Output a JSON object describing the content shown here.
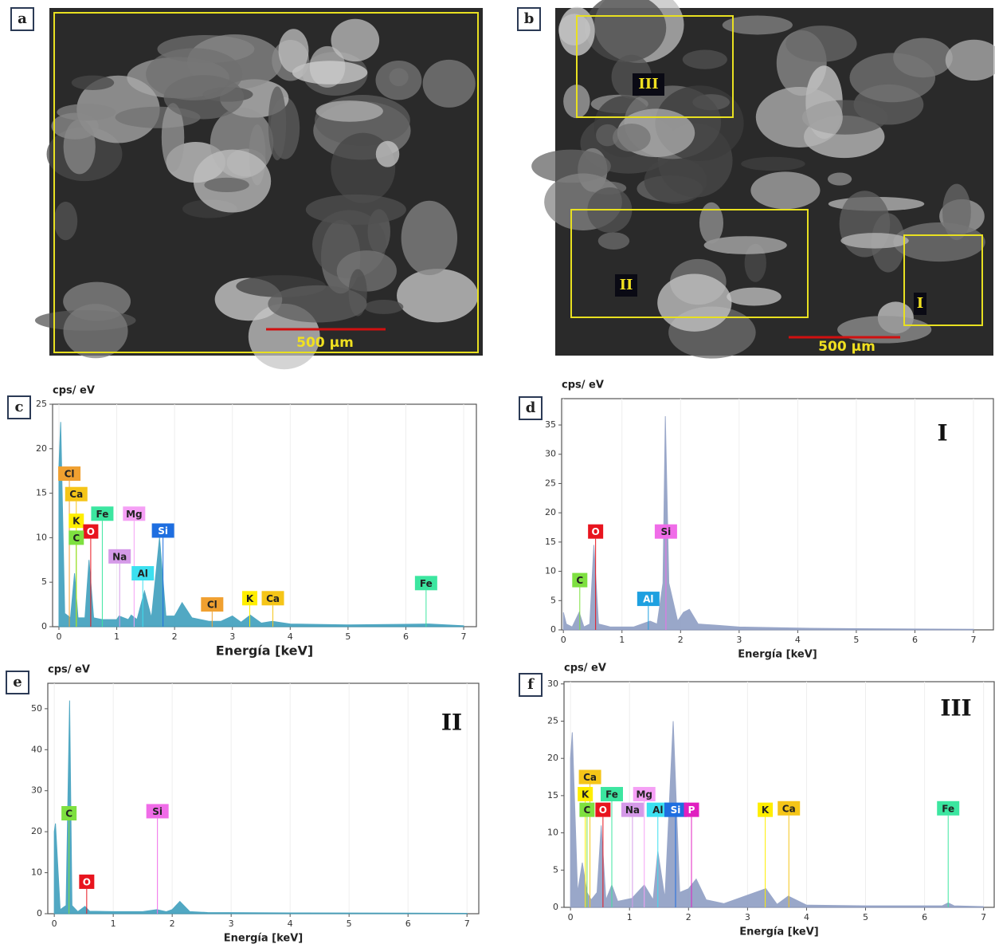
{
  "images": [
    {
      "panel_label": "a",
      "scale_bar": "500 µm"
    },
    {
      "panel_label": "b",
      "scale_bar": "500 µm",
      "regions": [
        "III",
        "II",
        "I"
      ]
    }
  ],
  "chart_data": [
    {
      "type": "area",
      "panel_label": "c",
      "y_label": "cps/ eV",
      "x_label": "Energía [keV]",
      "color": "#3f9fbd",
      "xlim": [
        -0.11,
        7.22
      ],
      "ylim": [
        0,
        25
      ],
      "xticks": [
        0,
        1,
        2,
        3,
        4,
        5,
        6,
        7
      ],
      "yticks": [
        0,
        5,
        10,
        15,
        20,
        25
      ],
      "x": [
        0,
        0.03,
        0.1,
        0.2,
        0.27,
        0.33,
        0.45,
        0.52,
        0.6,
        0.75,
        1.0,
        1.04,
        1.2,
        1.25,
        1.35,
        1.48,
        1.6,
        1.74,
        1.85,
        2.0,
        2.13,
        2.3,
        2.6,
        2.8,
        3.0,
        3.15,
        3.31,
        3.5,
        3.69,
        4.0,
        5.0,
        6.4,
        7.0
      ],
      "values": [
        18,
        23,
        1.5,
        1,
        6,
        1,
        1,
        7.5,
        1,
        0.8,
        0.8,
        1.2,
        0.8,
        1.3,
        0.8,
        4,
        1,
        10,
        1.2,
        1.2,
        2.7,
        1,
        0.6,
        0.6,
        1.2,
        0.5,
        1.3,
        0.4,
        0.6,
        0.3,
        0.2,
        0.3,
        0.1
      ],
      "annotations": [
        {
          "text": "Cl",
          "x": 0.18,
          "y": 17.2,
          "color": "#f0a030"
        },
        {
          "text": "Ca",
          "x": 0.3,
          "y": 14.9,
          "color": "#f5c518"
        },
        {
          "text": "Fe",
          "x": 0.75,
          "y": 12.7,
          "color": "#3ce6a0"
        },
        {
          "text": "Mg",
          "x": 1.3,
          "y": 12.7,
          "color": "#f5a0f5"
        },
        {
          "text": "K",
          "x": 0.3,
          "y": 11.9,
          "color": "#ffee00"
        },
        {
          "text": "O",
          "x": 0.55,
          "y": 10.7,
          "color": "#e8141e"
        },
        {
          "text": "Si",
          "x": 1.8,
          "y": 10.8,
          "color": "#1e6ee0"
        },
        {
          "text": "C",
          "x": 0.3,
          "y": 10.0,
          "color": "#7ee040"
        },
        {
          "text": "Na",
          "x": 1.05,
          "y": 7.9,
          "color": "#d59ae8"
        },
        {
          "text": "Al",
          "x": 1.45,
          "y": 6.0,
          "color": "#3ce0f0"
        },
        {
          "text": "Cl",
          "x": 2.65,
          "y": 2.5,
          "color": "#f0a030"
        },
        {
          "text": "K",
          "x": 3.3,
          "y": 3.2,
          "color": "#ffee00"
        },
        {
          "text": "Ca",
          "x": 3.7,
          "y": 3.2,
          "color": "#f5c518"
        },
        {
          "text": "Fe",
          "x": 6.35,
          "y": 4.9,
          "color": "#3ce6a0"
        }
      ]
    },
    {
      "type": "area",
      "panel_label": "d",
      "panel_title": "I",
      "y_label": "cps/ eV",
      "x_label": "Energía [keV]",
      "color": "#8f9ec4",
      "xlim": [
        -0.03,
        7.34
      ],
      "ylim": [
        0,
        39.5
      ],
      "xticks": [
        0,
        1,
        2,
        3,
        4,
        5,
        6,
        7
      ],
      "yticks": [
        0,
        5,
        10,
        15,
        20,
        25,
        30,
        35
      ],
      "x": [
        0,
        0.05,
        0.15,
        0.27,
        0.35,
        0.45,
        0.52,
        0.6,
        0.8,
        1.2,
        1.48,
        1.6,
        1.7,
        1.74,
        1.8,
        1.95,
        2.05,
        2.15,
        2.3,
        2.6,
        3.0,
        4.0,
        5.0,
        7.0
      ],
      "values": [
        3,
        1,
        0.5,
        3,
        0.5,
        1,
        14.5,
        1,
        0.5,
        0.5,
        1.5,
        1,
        8,
        36.5,
        8,
        1.5,
        3,
        3.5,
        1,
        0.8,
        0.5,
        0.3,
        0.2,
        0.1
      ],
      "annotations": [
        {
          "text": "C",
          "x": 0.28,
          "y": 8.5,
          "color": "#7ee040"
        },
        {
          "text": "O",
          "x": 0.55,
          "y": 16.8,
          "color": "#e8141e"
        },
        {
          "text": "Al",
          "x": 1.45,
          "y": 5.3,
          "color": "#1ea0e0"
        },
        {
          "text": "Si",
          "x": 1.75,
          "y": 16.8,
          "color": "#f06ce8"
        }
      ]
    },
    {
      "type": "area",
      "panel_label": "e",
      "panel_title": "II",
      "y_label": "cps/ eV",
      "x_label": "Energía [keV]",
      "color": "#3f9fbd",
      "xlim": [
        -0.11,
        7.2
      ],
      "ylim": [
        0,
        56.2
      ],
      "xticks": [
        0,
        1,
        2,
        3,
        4,
        5,
        6,
        7
      ],
      "yticks": [
        0,
        10,
        20,
        30,
        40,
        50
      ],
      "x": [
        0,
        0.02,
        0.1,
        0.2,
        0.26,
        0.3,
        0.4,
        0.52,
        0.6,
        1.0,
        1.5,
        1.74,
        1.9,
        2.0,
        2.13,
        2.3,
        2.6,
        4.0,
        7.0
      ],
      "values": [
        20,
        22,
        1,
        2,
        52,
        2,
        0.5,
        1.8,
        0.6,
        0.5,
        0.5,
        1,
        0.5,
        1,
        3,
        0.5,
        0.3,
        0.2,
        0.1
      ],
      "annotations": [
        {
          "text": "C",
          "x": 0.25,
          "y": 24.5,
          "color": "#7ee040"
        },
        {
          "text": "O",
          "x": 0.55,
          "y": 7.8,
          "color": "#e8141e"
        },
        {
          "text": "Si",
          "x": 1.75,
          "y": 25,
          "color": "#f06ce8"
        }
      ]
    },
    {
      "type": "area",
      "panel_label": "f",
      "panel_title": "III",
      "y_label": "cps/ eV",
      "x_label": "Energía [keV]",
      "color": "#8f9ec4",
      "xlim": [
        -0.11,
        7.18
      ],
      "ylim": [
        0,
        30.3
      ],
      "xticks": [
        0,
        1,
        2,
        3,
        4,
        5,
        6,
        7
      ],
      "yticks": [
        0,
        5,
        10,
        15,
        20,
        25,
        30
      ],
      "x": [
        0,
        0.03,
        0.12,
        0.2,
        0.28,
        0.35,
        0.45,
        0.52,
        0.6,
        0.7,
        0.8,
        1.04,
        1.25,
        1.4,
        1.48,
        1.6,
        1.74,
        1.85,
        2.0,
        2.13,
        2.3,
        2.6,
        3.31,
        3.5,
        3.69,
        4.0,
        5.0,
        6.3,
        6.4,
        6.5,
        7.0
      ],
      "values": [
        20,
        23.5,
        2,
        6,
        2,
        1,
        2,
        11,
        1,
        3,
        0.8,
        1.2,
        3,
        1,
        7.5,
        1.2,
        25,
        2,
        2.5,
        3.8,
        1,
        0.5,
        2.5,
        0.4,
        1.5,
        0.3,
        0.2,
        0.2,
        0.6,
        0.2,
        0.1
      ],
      "annotations": [
        {
          "text": "Ca",
          "x": 0.33,
          "y": 17.5,
          "color": "#f5c518"
        },
        {
          "text": "K",
          "x": 0.25,
          "y": 15.2,
          "color": "#ffee00"
        },
        {
          "text": "Fe",
          "x": 0.7,
          "y": 15.2,
          "color": "#3ce6a0"
        },
        {
          "text": "Mg",
          "x": 1.25,
          "y": 15.2,
          "color": "#f5a0f5"
        },
        {
          "text": "C",
          "x": 0.28,
          "y": 13.1,
          "color": "#7ee040"
        },
        {
          "text": "O",
          "x": 0.55,
          "y": 13.1,
          "color": "#e8141e"
        },
        {
          "text": "Na",
          "x": 1.05,
          "y": 13.1,
          "color": "#d59ae8"
        },
        {
          "text": "Al",
          "x": 1.48,
          "y": 13.1,
          "color": "#3ce0f0"
        },
        {
          "text": "Si",
          "x": 1.78,
          "y": 13.1,
          "color": "#1e6ee0"
        },
        {
          "text": "P",
          "x": 2.05,
          "y": 13.1,
          "color": "#e020c0"
        },
        {
          "text": "K",
          "x": 3.3,
          "y": 13.1,
          "color": "#ffee00"
        },
        {
          "text": "Ca",
          "x": 3.7,
          "y": 13.3,
          "color": "#f5c518"
        },
        {
          "text": "Fe",
          "x": 6.4,
          "y": 13.3,
          "color": "#3ce6a0"
        }
      ]
    }
  ]
}
